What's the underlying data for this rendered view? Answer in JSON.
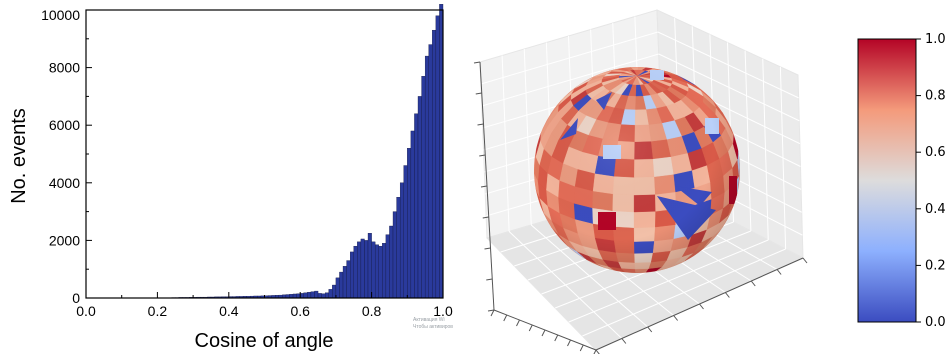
{
  "chart_data": [
    {
      "type": "bar",
      "xlabel": "Cosine of angle",
      "ylabel": "No. events",
      "xlim": [
        0,
        1.0
      ],
      "ylim": [
        0,
        10000
      ],
      "xticks": [
        "0.0",
        "0.2",
        "0.4",
        "0.6",
        "0.8",
        "1.0"
      ],
      "yticks": [
        "0",
        "2000",
        "4000",
        "6000",
        "8000",
        "10000"
      ],
      "bin_width": 0.01,
      "bar_color": "#2a3a9c",
      "x": [
        0.005,
        0.015,
        0.025,
        0.035,
        0.045,
        0.055,
        0.065,
        0.075,
        0.085,
        0.095,
        0.105,
        0.115,
        0.125,
        0.135,
        0.145,
        0.155,
        0.165,
        0.175,
        0.185,
        0.195,
        0.205,
        0.215,
        0.225,
        0.235,
        0.245,
        0.255,
        0.265,
        0.275,
        0.285,
        0.295,
        0.305,
        0.315,
        0.325,
        0.335,
        0.345,
        0.355,
        0.365,
        0.375,
        0.385,
        0.395,
        0.405,
        0.415,
        0.425,
        0.435,
        0.445,
        0.455,
        0.465,
        0.475,
        0.485,
        0.495,
        0.505,
        0.515,
        0.525,
        0.535,
        0.545,
        0.555,
        0.565,
        0.575,
        0.585,
        0.595,
        0.605,
        0.615,
        0.625,
        0.635,
        0.645,
        0.655,
        0.665,
        0.675,
        0.685,
        0.695,
        0.705,
        0.715,
        0.725,
        0.735,
        0.745,
        0.755,
        0.765,
        0.775,
        0.785,
        0.795,
        0.805,
        0.815,
        0.825,
        0.835,
        0.845,
        0.855,
        0.865,
        0.875,
        0.885,
        0.895,
        0.905,
        0.915,
        0.925,
        0.935,
        0.945,
        0.955,
        0.965,
        0.975,
        0.985,
        0.995
      ],
      "values": [
        0,
        0,
        0,
        0,
        0,
        0,
        0,
        0,
        0,
        0,
        0,
        0,
        0,
        0,
        0,
        0,
        0,
        0,
        0,
        0,
        0,
        0,
        10,
        10,
        15,
        15,
        20,
        20,
        20,
        25,
        25,
        30,
        30,
        30,
        35,
        35,
        40,
        40,
        45,
        45,
        50,
        50,
        55,
        55,
        60,
        60,
        65,
        70,
        70,
        75,
        80,
        85,
        90,
        95,
        100,
        110,
        120,
        130,
        140,
        150,
        160,
        180,
        200,
        220,
        240,
        160,
        150,
        180,
        300,
        450,
        700,
        900,
        1100,
        1300,
        1600,
        1800,
        1950,
        2050,
        2000,
        2250,
        1950,
        1850,
        1800,
        1900,
        2200,
        2500,
        3000,
        3500,
        4000,
        4600,
        5200,
        5800,
        6400,
        7000,
        7700,
        8400,
        8800,
        9300,
        9800,
        10200
      ]
    },
    {
      "type": "heatmap",
      "projection": "3d-sphere",
      "colormap": "coolwarm",
      "colorbar_ticks": [
        "0.0",
        "0.2",
        "0.4",
        "0.6",
        "0.8",
        "1.0"
      ],
      "colorbar_range": [
        0.0,
        1.0
      ]
    }
  ],
  "watermark": {
    "line1": "Активация Wi",
    "line2": "Чтобы активиров"
  }
}
